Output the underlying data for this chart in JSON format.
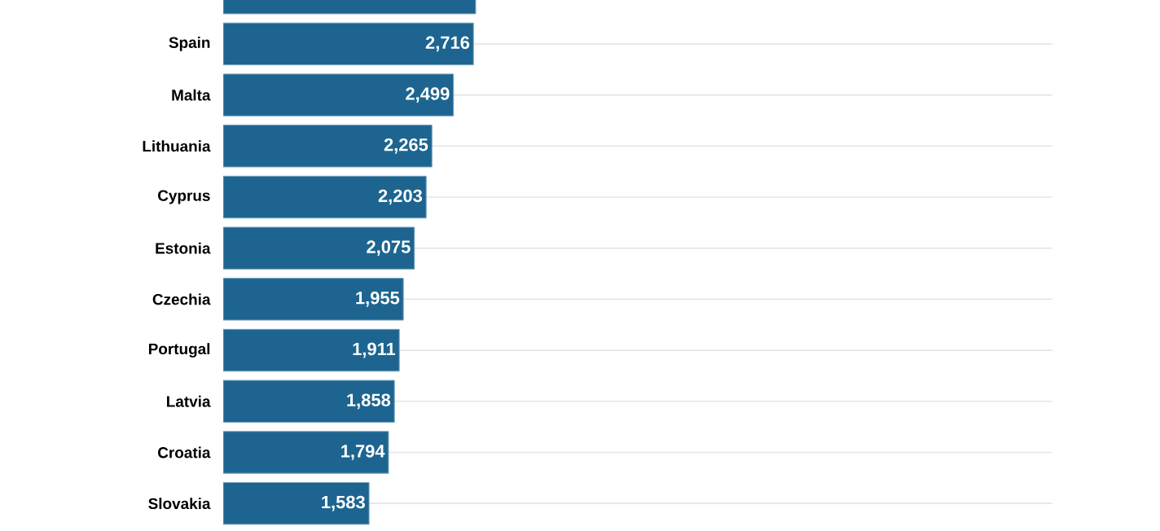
{
  "chart_data": {
    "type": "bar",
    "orientation": "horizontal",
    "categories": [
      null,
      "Spain",
      "Malta",
      "Lithuania",
      "Cyprus",
      "Estonia",
      "Czechia",
      "Portugal",
      "Latvia",
      "Croatia",
      "Slovakia"
    ],
    "values": [
      2740,
      2716,
      2499,
      2265,
      2203,
      2075,
      1955,
      1911,
      1858,
      1794,
      1583
    ],
    "value_labels": [
      null,
      "2,716",
      "2,499",
      "2,265",
      "2,203",
      "2,075",
      "1,955",
      "1,911",
      "1,858",
      "1,794",
      "1,583"
    ],
    "color": "#1d6590",
    "xlim": [
      0,
      9000
    ],
    "grid": "y",
    "tick_labels": "y"
  }
}
